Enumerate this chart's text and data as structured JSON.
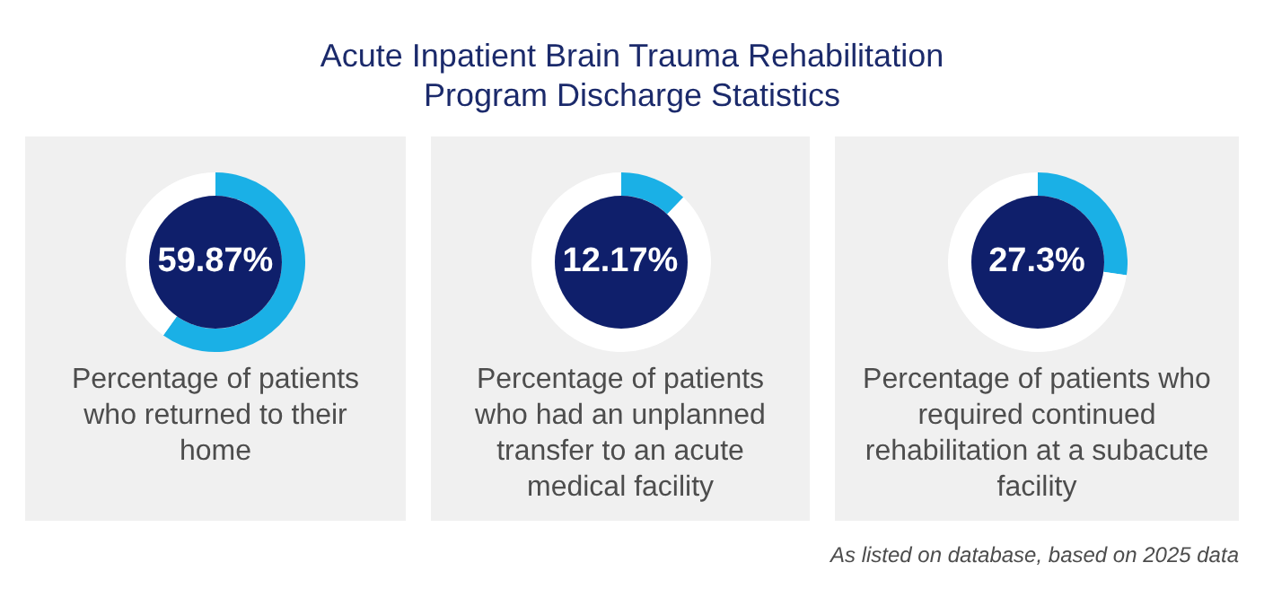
{
  "chart_data": [
    {
      "type": "donut",
      "subtitle": "Percentage of patients who returned to their home",
      "categories": [
        null,
        null
      ],
      "values": [
        59.87,
        40.13
      ],
      "colors": [
        "#1ab0e6",
        "#ffffff"
      ],
      "value_labels": [
        "59.87%",
        null
      ]
    },
    {
      "type": "donut",
      "title": "Acute Inpatient Brain Trauma Rehabilitation Program Discharge Statistics",
      "subtitle": "Percentage of patients who had an unplanned transfer to an acute medical facility",
      "categories": [
        null,
        null
      ],
      "values": [
        12.17,
        87.83
      ],
      "colors": [
        "#1ab0e6",
        "#ffffff"
      ],
      "value_labels": [
        "12.17%",
        null
      ]
    },
    {
      "type": "donut",
      "subtitle": "Percentage of patients who required continued rehabilitation at a subacute facility",
      "categories": [
        null,
        null
      ],
      "values": [
        27.3,
        72.7
      ],
      "colors": [
        "#1ab0e6",
        "#ffffff"
      ],
      "value_labels": [
        "27.3%",
        null
      ],
      "annotations": [
        "As listed on database, based on 2025 data"
      ]
    }
  ]
}
